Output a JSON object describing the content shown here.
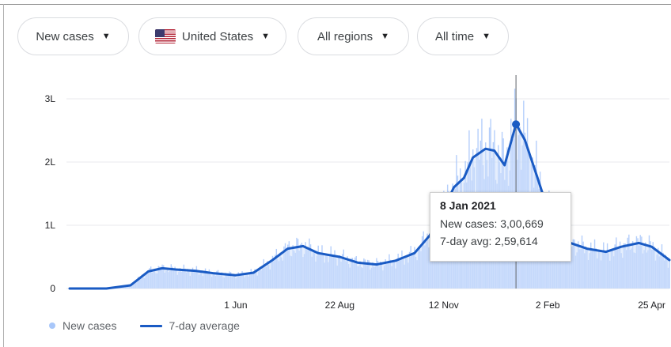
{
  "filters": {
    "metric": "New cases",
    "country": "United States",
    "region": "All regions",
    "period": "All time"
  },
  "tooltip": {
    "date": "8 Jan 2021",
    "new_cases": "New cases: 3,00,669",
    "avg": "7-day avg: 2,59,614"
  },
  "legend": {
    "bars": "New cases",
    "line": "7-day average"
  },
  "colors": {
    "bars": "#a8c7fa",
    "area": "#cfe0fb",
    "line": "#1a5bc4",
    "grid": "#e8eaed",
    "axis": "#3c4043"
  },
  "chart_data": {
    "type": "line",
    "x_axis_type": "date",
    "x_start": "2020-01-22",
    "x_end": "2021-05-09",
    "xlim": [
      "2020-01-22",
      "2021-05-09"
    ],
    "ylim": [
      0,
      3.4
    ],
    "y_ticks": [
      {
        "value": 0,
        "label": "0"
      },
      {
        "value": 1,
        "label": "1L"
      },
      {
        "value": 2,
        "label": "2L"
      },
      {
        "value": 3,
        "label": "3L"
      }
    ],
    "x_ticks": [
      {
        "date": "2020-06-01",
        "label": "1 Jun"
      },
      {
        "date": "2020-08-22",
        "label": "22 Aug"
      },
      {
        "date": "2020-11-12",
        "label": "12 Nov"
      },
      {
        "date": "2021-02-02",
        "label": "2 Feb"
      },
      {
        "date": "2021-04-25",
        "label": "25 Apr"
      }
    ],
    "highlight_date": "2021-01-08",
    "series": [
      {
        "name": "7-day average",
        "x": [
          "2020-01-22",
          "2020-02-20",
          "2020-03-10",
          "2020-03-24",
          "2020-04-04",
          "2020-04-15",
          "2020-04-30",
          "2020-05-15",
          "2020-06-01",
          "2020-06-15",
          "2020-06-30",
          "2020-07-12",
          "2020-07-24",
          "2020-08-05",
          "2020-08-22",
          "2020-09-05",
          "2020-09-20",
          "2020-10-05",
          "2020-10-20",
          "2020-11-01",
          "2020-11-12",
          "2020-11-20",
          "2020-11-28",
          "2020-12-05",
          "2020-12-15",
          "2020-12-22",
          "2020-12-30",
          "2021-01-08",
          "2021-01-15",
          "2021-01-25",
          "2021-02-02",
          "2021-02-10",
          "2021-02-20",
          "2021-03-05",
          "2021-03-20",
          "2021-04-01",
          "2021-04-15",
          "2021-04-25",
          "2021-05-09"
        ],
        "y": [
          0.0,
          0.0,
          0.05,
          0.27,
          0.32,
          0.3,
          0.28,
          0.24,
          0.21,
          0.25,
          0.45,
          0.63,
          0.67,
          0.56,
          0.5,
          0.41,
          0.38,
          0.44,
          0.56,
          0.84,
          1.26,
          1.6,
          1.75,
          2.07,
          2.21,
          2.18,
          1.95,
          2.6,
          2.35,
          1.75,
          1.25,
          0.95,
          0.72,
          0.63,
          0.58,
          0.66,
          0.72,
          0.66,
          0.45
        ]
      },
      {
        "name": "New cases",
        "note_values_follow_average": true
      }
    ],
    "new_cases_highlight": {
      "date": "2021-01-08",
      "value": 3.00669
    },
    "avg_highlight": {
      "date": "2021-01-08",
      "value": 2.59614
    }
  }
}
